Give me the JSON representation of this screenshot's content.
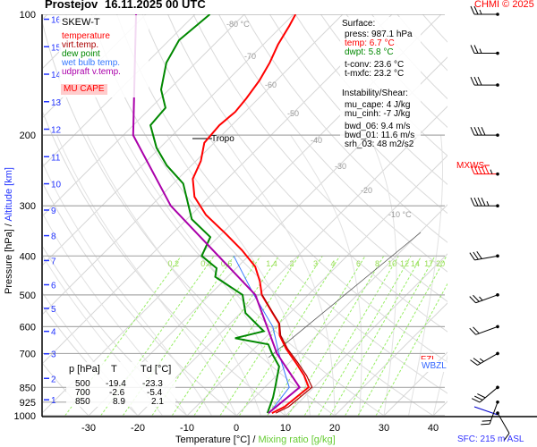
{
  "header": {
    "station": "Prostejov",
    "datetime": "16.11.2025 00 UTC",
    "credit": "CHMI © 2025"
  },
  "legend": {
    "title": "SKEW-T",
    "items": [
      {
        "label": "temperature",
        "color": "#ff0000"
      },
      {
        "label": "virt.temp.",
        "color": "#aa0000"
      },
      {
        "label": "dew point",
        "color": "#008800"
      },
      {
        "label": "wet bulb temp.",
        "color": "#3377ff"
      },
      {
        "label": "udpraft v.temp.",
        "color": "#aa00aa"
      }
    ],
    "mu_cape_label": "MU CAPE"
  },
  "info": {
    "surface_title": "Surface:",
    "press": "press: 987.1 hPa",
    "temp": "temp: 6.7 °C",
    "dwpt": "dwpt: 5.8 °C",
    "tconv": "t-conv: 23.6 °C",
    "tmxfc": "t-mxfc: 23.2 °C",
    "instab_title": "Instability/Shear:",
    "mu_cape": "mu_cape: 4 J/kg",
    "mu_cinh": "mu_cinh: -7 J/kg",
    "bwd_06": "bwd_06: 9.4 m/s",
    "bwd_01": "bwd_01: 11.6 m/s",
    "srh_03": "srh_03: 48 m2/s2"
  },
  "table": {
    "headers": [
      "p [hPa]",
      "T",
      "Td [°C]"
    ],
    "rows": [
      [
        "500",
        "-19.4",
        "-23.3"
      ],
      [
        "700",
        "-2.6",
        "-5.4"
      ],
      [
        "850",
        "8.9",
        "2.1"
      ]
    ]
  },
  "markers": {
    "tropo": "Tropo",
    "mxws": "MXWS",
    "fzl": "FZL",
    "wbzl": "WBZL",
    "sfc": "SFC: 215 m ASL"
  },
  "chart_data": {
    "type": "line",
    "title": "Prostejov 16.11.2025 00 UTC",
    "xlabel": "Temperature [°C]",
    "xlabel2": "Mixing ratio [g/kg]",
    "ylabel": "Pressure [hPa]",
    "ylabel2": "Altitude [km]",
    "xlim": [
      -35,
      48
    ],
    "ylim": [
      1000,
      100
    ],
    "x_ticks": [
      -30,
      -20,
      -10,
      0,
      10,
      20,
      30,
      40
    ],
    "y_ticks": [
      100,
      200,
      300,
      400,
      500,
      600,
      700,
      850,
      925,
      1000
    ],
    "altitude_ticks": [
      1,
      2,
      3,
      4,
      5,
      6,
      7,
      8,
      9,
      10,
      11,
      12,
      13,
      14,
      15,
      16
    ],
    "isotherm_labels": [
      "-80 °C",
      "-70",
      "-60",
      "-50",
      "-40",
      "-30",
      "-20",
      "-10 °C"
    ],
    "mixing_ratio_labels": [
      "0.2",
      "0.4",
      "0.6",
      "1",
      "1.4",
      "2",
      "3",
      "4",
      "6",
      "8",
      "10",
      "12",
      "14",
      "17",
      "20",
      "25"
    ],
    "series": [
      {
        "name": "temperature",
        "color": "#ff0000",
        "p": [
          985,
          950,
          849,
          794,
          735,
          681,
          631,
          590,
          555,
          500,
          463,
          425,
          387,
          349,
          316,
          285,
          257,
          232,
          209,
          189,
          175,
          162,
          146,
          132,
          119,
          107,
          100
        ],
        "T": [
          6.7,
          8.0,
          8.9,
          5.6,
          1.1,
          -3.5,
          -7.5,
          -10,
          -13.5,
          -19.4,
          -22.5,
          -26.5,
          -32.5,
          -39.8,
          -47,
          -53,
          -57,
          -59,
          -62,
          -62.5,
          -62,
          -62.5,
          -63.5,
          -65,
          -67,
          -68.5,
          -69.6
        ]
      },
      {
        "name": "virt.temp.",
        "color": "#aa0000",
        "p": [
          985,
          950,
          849,
          794,
          735,
          681,
          631,
          590,
          555,
          500
        ],
        "T": [
          7.5,
          8.8,
          9.6,
          6.1,
          1.5,
          -3.2,
          -7.3,
          -9.9,
          -13.4,
          -19.3
        ]
      },
      {
        "name": "dew point",
        "color": "#008800",
        "p": [
          985,
          902,
          849,
          754,
          700,
          664,
          641,
          616,
          555,
          500,
          451,
          429,
          400,
          359,
          324,
          264,
          238,
          215,
          189,
          171,
          154,
          132,
          116,
          100
        ],
        "T": [
          5.8,
          3.8,
          2.1,
          -1.3,
          -5.4,
          -8,
          -16,
          -11.6,
          -19,
          -23.3,
          -32.5,
          -34,
          -39.5,
          -41.6,
          -49,
          -58,
          -65,
          -70.7,
          -76.5,
          -77,
          -81.6,
          -86,
          -88,
          -87
        ]
      },
      {
        "name": "wet bulb temp.",
        "color": "#3377ff",
        "p": [
          985,
          850,
          700,
          600,
          500,
          400
        ],
        "T": [
          6.2,
          5.0,
          -4.0,
          -10.7,
          -21,
          -33
        ]
      },
      {
        "name": "udpraft v.temp.",
        "color": "#aa00aa",
        "p": [
          985,
          850,
          700,
          500,
          300,
          200,
          100
        ],
        "T": [
          6.0,
          7.1,
          -4.4,
          -20.7,
          -56,
          -78,
          -102
        ]
      }
    ],
    "wind_barbs": [
      {
        "p": 985,
        "dir": 150,
        "kt": 10
      },
      {
        "p": 925,
        "dir": 200,
        "kt": 20
      },
      {
        "p": 850,
        "dir": 230,
        "kt": 30
      },
      {
        "p": 700,
        "dir": 240,
        "kt": 25
      },
      {
        "p": 600,
        "dir": 250,
        "kt": 20
      },
      {
        "p": 500,
        "dir": 250,
        "kt": 25
      },
      {
        "p": 400,
        "dir": 260,
        "kt": 30
      },
      {
        "p": 300,
        "dir": 270,
        "kt": 45
      },
      {
        "p": 250,
        "dir": 270,
        "kt": 55
      },
      {
        "p": 200,
        "dir": 270,
        "kt": 40
      },
      {
        "p": 150,
        "dir": 270,
        "kt": 30
      },
      {
        "p": 125,
        "dir": 270,
        "kt": 25
      },
      {
        "p": 100,
        "dir": 270,
        "kt": 25
      }
    ]
  }
}
